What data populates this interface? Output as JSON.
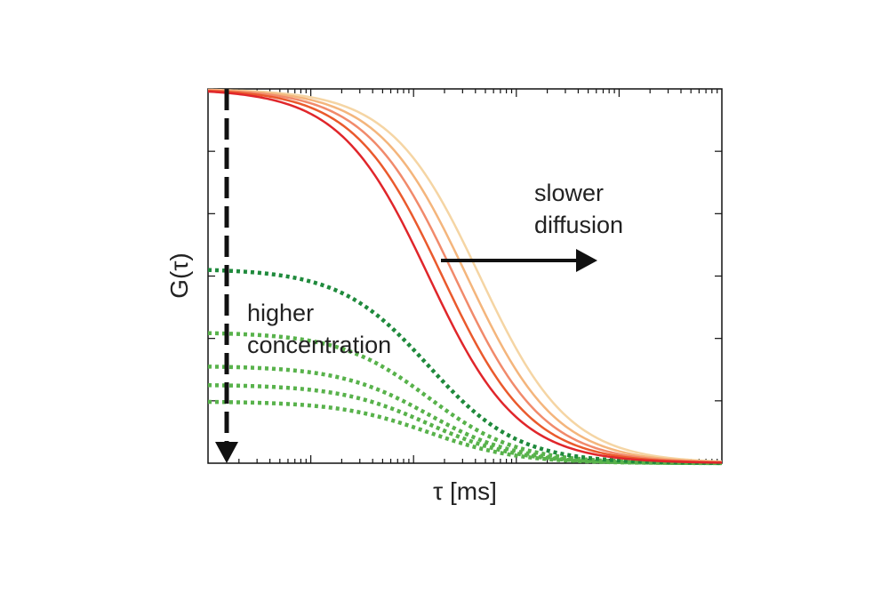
{
  "chart_data": {
    "type": "line",
    "xlabel": "τ [ms]",
    "ylabel": "G(τ)",
    "x_scale": "log",
    "x_range": [
      0.001,
      100
    ],
    "y_range": [
      0,
      1
    ],
    "grid": false,
    "legend": "none",
    "x_tick_labels_shown": false,
    "y_tick_labels_shown": false,
    "annotations": {
      "slower": "slower",
      "diffusion": "diffusion",
      "higher": "higher",
      "concentration": "concentration"
    },
    "solid_series": [
      {
        "amplitude": 1.0,
        "tau_d": 0.14,
        "color": "#e0262b"
      },
      {
        "amplitude": 1.0,
        "tau_d": 0.19,
        "color": "#ea5a2d"
      },
      {
        "amplitude": 1.0,
        "tau_d": 0.25,
        "color": "#f18a6b"
      },
      {
        "amplitude": 1.0,
        "tau_d": 0.33,
        "color": "#f4b57c"
      },
      {
        "amplitude": 1.0,
        "tau_d": 0.44,
        "color": "#f5d5a4"
      }
    ],
    "dotted_series": [
      {
        "amplitude": 0.52,
        "tau_d": 0.14,
        "color": "#1f8a3c"
      },
      {
        "amplitude": 0.35,
        "tau_d": 0.14,
        "color": "#58b24b"
      },
      {
        "amplitude": 0.26,
        "tau_d": 0.14,
        "color": "#58b24b"
      },
      {
        "amplitude": 0.21,
        "tau_d": 0.14,
        "color": "#58b24b"
      },
      {
        "amplitude": 0.165,
        "tau_d": 0.14,
        "color": "#58b24b"
      }
    ]
  }
}
